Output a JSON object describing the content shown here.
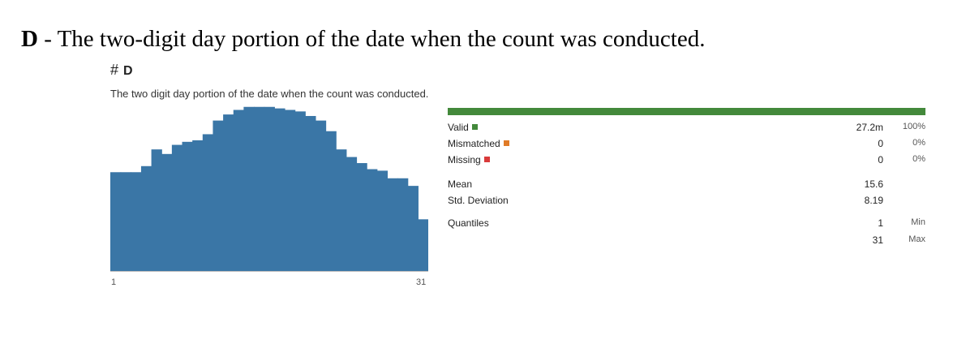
{
  "heading": {
    "bold_part": "D",
    "rest": " - The two-digit day portion of the date when the count was conducted."
  },
  "column": {
    "hash_symbol": "#",
    "name": "D",
    "description": "The two digit day portion of the date when the count was conducted."
  },
  "chart_data": {
    "type": "bar",
    "categories": [
      "1",
      "2",
      "3",
      "4",
      "5",
      "6",
      "7",
      "8",
      "9",
      "10",
      "11",
      "12",
      "13",
      "14",
      "15",
      "16",
      "17",
      "18",
      "19",
      "20",
      "21",
      "22",
      "23",
      "24",
      "25",
      "26",
      "27",
      "28",
      "29",
      "30",
      "31"
    ],
    "values": [
      65,
      65,
      65,
      69,
      80,
      77,
      83,
      85,
      86,
      90,
      99,
      103,
      106,
      108,
      108,
      108,
      107,
      106,
      105,
      102,
      99,
      92,
      80,
      75,
      71,
      67,
      66,
      61,
      61,
      56,
      34
    ],
    "ylim": [
      0,
      110
    ],
    "tick_labels": {
      "min": "1",
      "max": "31"
    },
    "bar_color": "#3a76a6"
  },
  "stats": {
    "valid": {
      "label": "Valid",
      "value": "27.2m",
      "pct": "100%",
      "color": "#43893b"
    },
    "mismatched": {
      "label": "Mismatched",
      "value": "0",
      "pct": "0%",
      "color": "#e07b27"
    },
    "missing": {
      "label": "Missing",
      "value": "0",
      "pct": "0%",
      "color": "#d93a3a"
    },
    "mean": {
      "label": "Mean",
      "value": "15.6"
    },
    "std": {
      "label": "Std. Deviation",
      "value": "8.19"
    },
    "quantiles": {
      "label": "Quantiles",
      "min_value": "1",
      "min_label": "Min",
      "max_value": "31",
      "max_label": "Max"
    }
  }
}
